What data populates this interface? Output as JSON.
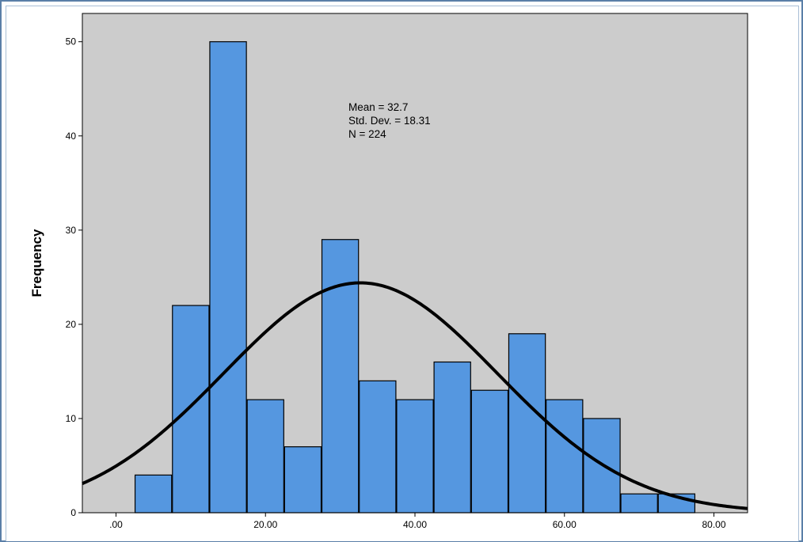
{
  "chart_data": {
    "type": "bar",
    "subtype": "histogram",
    "ylabel": "Frequency",
    "xlabel": "",
    "bin_width": 5,
    "bins": [
      {
        "start": 2.5,
        "end": 7.5,
        "count": 4
      },
      {
        "start": 7.5,
        "end": 12.5,
        "count": 22
      },
      {
        "start": 12.5,
        "end": 17.5,
        "count": 50
      },
      {
        "start": 17.5,
        "end": 22.5,
        "count": 12
      },
      {
        "start": 22.5,
        "end": 27.5,
        "count": 7
      },
      {
        "start": 27.5,
        "end": 32.5,
        "count": 29
      },
      {
        "start": 32.5,
        "end": 37.5,
        "count": 14
      },
      {
        "start": 37.5,
        "end": 42.5,
        "count": 12
      },
      {
        "start": 42.5,
        "end": 47.5,
        "count": 16
      },
      {
        "start": 47.5,
        "end": 52.5,
        "count": 13
      },
      {
        "start": 52.5,
        "end": 57.5,
        "count": 19
      },
      {
        "start": 57.5,
        "end": 62.5,
        "count": 12
      },
      {
        "start": 62.5,
        "end": 67.5,
        "count": 10
      },
      {
        "start": 67.5,
        "end": 72.5,
        "count": 2
      },
      {
        "start": 72.5,
        "end": 77.5,
        "count": 2
      }
    ],
    "xlim": [
      -4.5,
      84.5
    ],
    "ylim": [
      0,
      53
    ],
    "xticks": [
      0,
      20,
      40,
      60,
      80
    ],
    "xtick_labels": [
      ".00",
      "20.00",
      "40.00",
      "60.00",
      "80.00"
    ],
    "yticks": [
      0,
      10,
      20,
      30,
      40,
      50
    ],
    "ytick_labels": [
      "0",
      "10",
      "20",
      "30",
      "40",
      "50"
    ],
    "normal_curve": {
      "mean": 32.7,
      "sd": 18.31,
      "n": 224
    },
    "stats_lines": [
      "Mean = 32.7",
      "Std. Dev. = 18.31",
      "N = 224"
    ],
    "grid": false,
    "colors": {
      "bar_fill": "#5597e0",
      "bar_stroke": "#000000",
      "plot_background": "#cccccc",
      "curve": "#000000",
      "frame": "#5a7fa8"
    }
  }
}
